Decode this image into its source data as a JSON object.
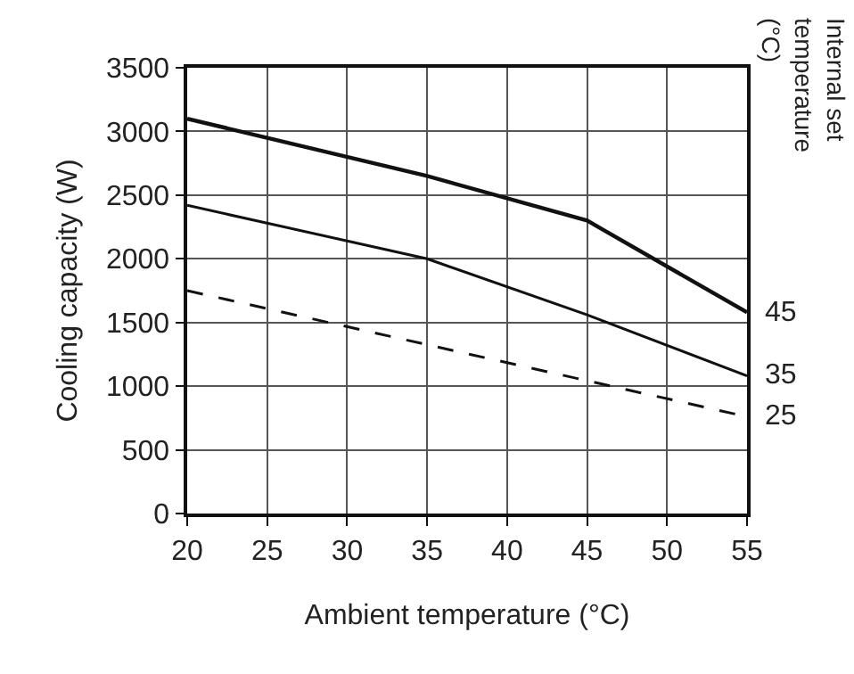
{
  "chart_data": {
    "type": "line",
    "xlabel": "Ambient temperature (°C)",
    "ylabel": "Cooling capacity (W)",
    "legend_title": "Internal set temperature (°C)",
    "x": [
      20,
      35,
      45,
      55
    ],
    "series": [
      {
        "name": "45",
        "color": "#111111",
        "values": [
          3100,
          2650,
          2300,
          1580
        ],
        "line_style": "solid"
      },
      {
        "name": "35",
        "color": "#111111",
        "values": [
          2420,
          2000,
          1560,
          1080
        ],
        "line_style": "solid"
      },
      {
        "name": "25",
        "color": "#111111",
        "x": [
          20,
          55
        ],
        "values": [
          1750,
          760
        ],
        "line_style": "dashed"
      }
    ],
    "xlim": [
      20,
      55
    ],
    "xticks": [
      20,
      25,
      30,
      35,
      40,
      45,
      50,
      55
    ],
    "ylim": [
      0,
      3500
    ],
    "yticks": [
      0,
      500,
      1000,
      1500,
      2000,
      2500,
      3000,
      3500
    ],
    "grid": true,
    "legend": false,
    "marker": "none"
  }
}
